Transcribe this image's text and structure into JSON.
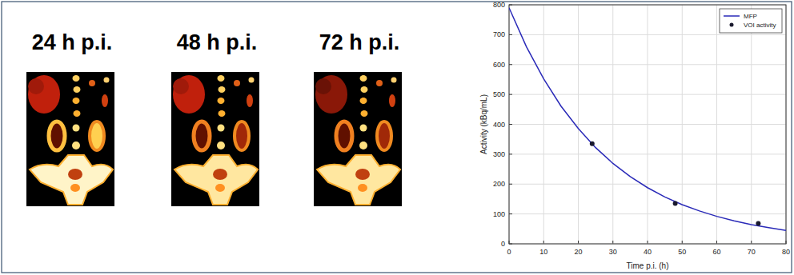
{
  "panels": [
    {
      "label": "24 h p.i."
    },
    {
      "label": "48 h p.i."
    },
    {
      "label": "72 h p.i."
    }
  ],
  "chart_data": {
    "type": "line",
    "x_label": "Time p.i. (h)",
    "y_label": "Activity (kBq/mL)",
    "xlim": [
      0,
      80
    ],
    "ylim": [
      0,
      800
    ],
    "xticks": [
      0,
      10,
      20,
      30,
      40,
      50,
      60,
      70,
      80
    ],
    "yticks": [
      0,
      100,
      200,
      300,
      400,
      500,
      600,
      700,
      800
    ],
    "grid": true,
    "legend": "upper-right",
    "series": [
      {
        "name": "MFP",
        "type": "line",
        "color": "#2a2ab8",
        "line_style": "solid",
        "x": [
          0,
          5,
          10,
          15,
          20,
          25,
          30,
          35,
          40,
          45,
          50,
          55,
          60,
          65,
          70,
          75,
          80
        ],
        "values": [
          790,
          660,
          552,
          461,
          386,
          322,
          269,
          225,
          188,
          157,
          131,
          110,
          92,
          77,
          64,
          54,
          45
        ]
      },
      {
        "name": "VOI activity",
        "type": "scatter",
        "color": "#1a1a2e",
        "marker": "circle",
        "x": [
          24,
          48,
          72
        ],
        "values": [
          335,
          135,
          68
        ]
      }
    ]
  }
}
